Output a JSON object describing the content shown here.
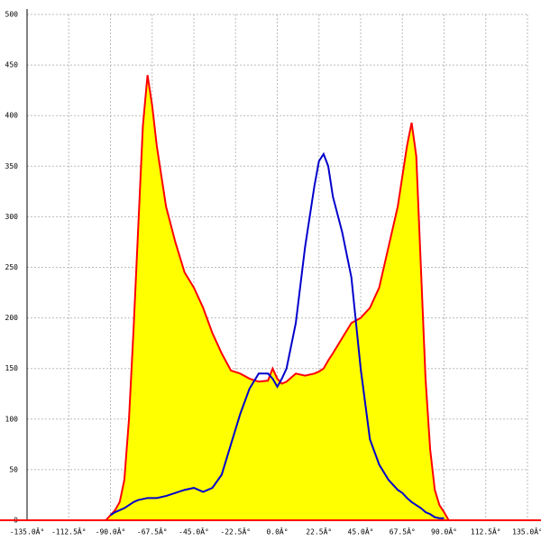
{
  "chart_data": {
    "type": "area",
    "x": [
      -92.5,
      -90,
      -87.5,
      -85,
      -82.5,
      -80,
      -77.5,
      -75,
      -72.5,
      -70,
      -67.5,
      -65,
      -60,
      -55,
      -50,
      -45,
      -40,
      -35,
      -30,
      -25,
      -20,
      -15,
      -10,
      -5,
      -2.5,
      0,
      2.5,
      5,
      10,
      15,
      20,
      22.5,
      25,
      27.5,
      30,
      35,
      40,
      45,
      50,
      55,
      60,
      65,
      67.5,
      70,
      72.5,
      75,
      77.5,
      80,
      82.5,
      85,
      87.5,
      90,
      92.5
    ],
    "series": [
      {
        "color": "#ff0000",
        "fill": "#ffff00",
        "values": [
          0,
          5,
          10,
          18,
          40,
          100,
          190,
          290,
          390,
          440,
          410,
          370,
          310,
          275,
          245,
          230,
          210,
          185,
          165,
          148,
          145,
          140,
          137,
          138,
          150,
          140,
          135,
          137,
          145,
          143,
          145,
          147,
          150,
          158,
          165,
          180,
          195,
          200,
          210,
          230,
          270,
          310,
          340,
          370,
          393,
          360,
          250,
          140,
          70,
          30,
          15,
          8,
          0
        ]
      },
      {
        "color": "#0000cc",
        "values": [
          null,
          5,
          8,
          10,
          12,
          15,
          18,
          20,
          21,
          22,
          22,
          22,
          24,
          27,
          30,
          32,
          28,
          32,
          45,
          75,
          105,
          130,
          145,
          145,
          140,
          132,
          140,
          150,
          195,
          270,
          330,
          355,
          362,
          350,
          320,
          285,
          240,
          150,
          80,
          55,
          40,
          30,
          27,
          22,
          18,
          15,
          12,
          8,
          6,
          3,
          2,
          2,
          null
        ]
      }
    ],
    "xlim": [
      -135,
      135
    ],
    "xticks": [
      {
        "value": -135,
        "label": "-135.0Â°"
      },
      {
        "value": -112.5,
        "label": "-112.5Â°"
      },
      {
        "value": -90,
        "label": "-90.0Â°"
      },
      {
        "value": -67.5,
        "label": "-67.5Â°"
      },
      {
        "value": -45,
        "label": "-45.0Â°"
      },
      {
        "value": -22.5,
        "label": "-22.5Â°"
      },
      {
        "value": 0,
        "label": "0.0Â°"
      },
      {
        "value": 22.5,
        "label": "22.5Â°"
      },
      {
        "value": 45,
        "label": "45.0Â°"
      },
      {
        "value": 67.5,
        "label": "67.5Â°"
      },
      {
        "value": 90,
        "label": "90.0Â°"
      },
      {
        "value": 112.5,
        "label": "112.5Â°"
      },
      {
        "value": 135,
        "label": "135.0Â°"
      }
    ],
    "ylim": [
      0,
      500
    ],
    "yticks": [
      0,
      50,
      100,
      150,
      200,
      250,
      300,
      350,
      400,
      450,
      500
    ],
    "grid": true
  }
}
